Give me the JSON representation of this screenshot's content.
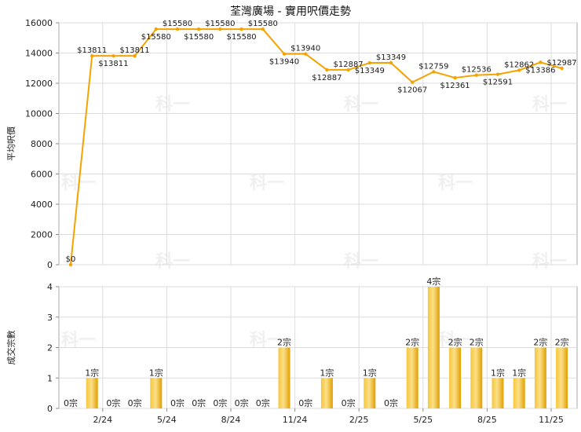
{
  "title": "荃灣廣場 - 實用呎價走勢",
  "colors": {
    "line": "#f5a300",
    "bar": "#f2b818",
    "grid": "#dddddd",
    "frame": "#aaaaaa"
  },
  "chart_data": [
    {
      "type": "line",
      "ylabel": "平均呎價",
      "ylim": [
        0,
        16000
      ],
      "yticks": [
        "0",
        "2000",
        "4000",
        "6000",
        "8000",
        "10000",
        "12000",
        "14000",
        "16000"
      ],
      "xtick_labels": [
        {
          "label": "2/24",
          "index": 2
        },
        {
          "label": "5/24",
          "index": 5
        },
        {
          "label": "8/24",
          "index": 8
        },
        {
          "label": "11/24",
          "index": 11
        },
        {
          "label": "2/25",
          "index": 14
        },
        {
          "label": "5/25",
          "index": 17
        },
        {
          "label": "8/25",
          "index": 20
        },
        {
          "label": "11/25",
          "index": 23
        }
      ],
      "values": [
        0,
        13811,
        13811,
        13811,
        15580,
        15580,
        15580,
        15580,
        15580,
        15580,
        13940,
        13940,
        12887,
        12887,
        13349,
        13349,
        12067,
        12759,
        12361,
        12536,
        12591,
        12862,
        13386,
        12987
      ],
      "labels": [
        "$0",
        "$13811",
        "$13811",
        "$13811",
        "$15580",
        "$15580",
        "$15580",
        "$15580",
        "$15580",
        "$15580",
        "$13940",
        "$13940",
        "$12887",
        "$12887",
        "$13349",
        "$13349",
        "$12067",
        "$12759",
        "$12361",
        "$12536",
        "$12591",
        "$12862",
        "$13386",
        "$12987"
      ]
    },
    {
      "type": "bar",
      "ylabel": "成交宗數",
      "ylim": [
        0,
        4
      ],
      "yticks": [
        "0",
        "1",
        "2",
        "3",
        "4"
      ],
      "values": [
        0,
        1,
        0,
        0,
        1,
        0,
        0,
        0,
        0,
        0,
        2,
        0,
        1,
        0,
        1,
        0,
        2,
        4,
        2,
        2,
        1,
        1,
        2,
        2
      ],
      "labels": [
        "0宗",
        "1宗",
        "0宗",
        "0宗",
        "1宗",
        "0宗",
        "0宗",
        "0宗",
        "0宗",
        "0宗",
        "2宗",
        "0宗",
        "1宗",
        "0宗",
        "1宗",
        "0宗",
        "2宗",
        "4宗",
        "2宗",
        "2宗",
        "1宗",
        "1宗",
        "2宗",
        "2宗"
      ]
    }
  ]
}
